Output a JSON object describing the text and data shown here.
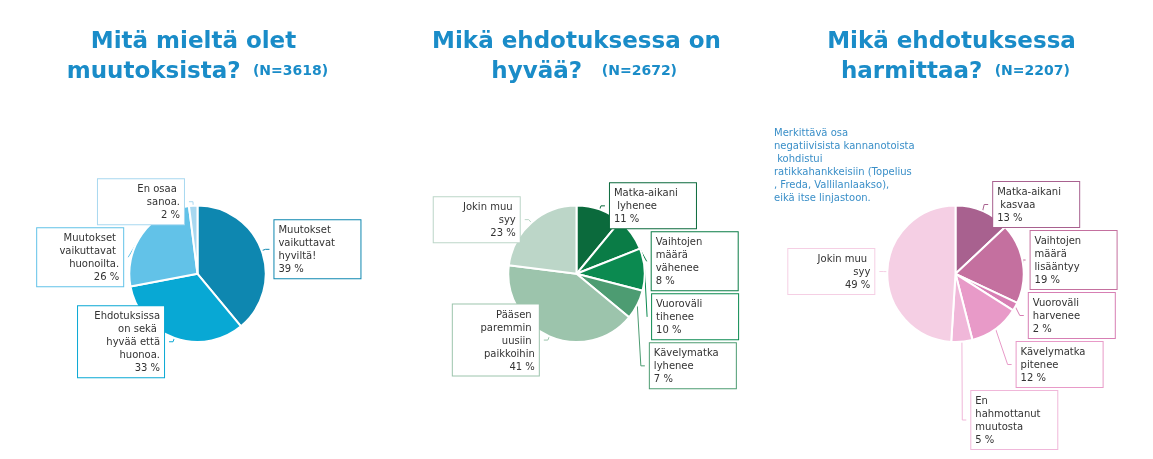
{
  "chart_data": [
    {
      "type": "pie",
      "title": "Mitä mieltä olet muutoksista?",
      "subtitle": "(N=3618)",
      "categories": [
        "Muutokset vaikuttavat hyviltä!",
        "Ehdotuksissa on sekä hyvää että huonoa.",
        "Muutokset vaikuttavat huonoilta.",
        "En osaa sanoa."
      ],
      "values": [
        39,
        33,
        26,
        2
      ],
      "value_labels": [
        "39 %",
        "33 %",
        "26 %",
        "2 %"
      ],
      "colors": [
        "#0e87b0",
        "#08a8d4",
        "#62c2e8",
        "#a8d8f0"
      ]
    },
    {
      "type": "pie",
      "title": "Mikä ehdotuksessa on hyvää?",
      "subtitle": "(N=2672)",
      "categories": [
        "Matka-aikani lyhenee",
        "Vaihtojen määrä vähenee",
        "Vuoroväli tihenee",
        "Kävelymatka lyhenee",
        "Pääsen paremmin uusiin paikkoihin",
        "Jokin muu syy"
      ],
      "values": [
        11,
        8,
        10,
        7,
        41,
        23
      ],
      "value_labels": [
        "11 %",
        "8 %",
        "10 %",
        "7 %",
        "41 %",
        "23 %"
      ],
      "colors": [
        "#0b6a3c",
        "#0a7c46",
        "#0b8a50",
        "#4d9c72",
        "#9cc4ac",
        "#bcd6c8"
      ]
    },
    {
      "type": "pie",
      "title": "Mikä ehdotuksessa harmittaa?",
      "subtitle": "(N=2207)",
      "categories": [
        "Matka-aikani kasvaa",
        "Vaihtojen määrä lisääntyy",
        "Vuoroväli harvenee",
        "Kävelymatka pitenee",
        "En hahmottanut muutosta",
        "Jokin muu syy"
      ],
      "values": [
        13,
        19,
        2,
        12,
        5,
        49
      ],
      "value_labels": [
        "13 %",
        "19 %",
        "2 %",
        "12 %",
        "5 %",
        "49 %"
      ],
      "colors": [
        "#a8618f",
        "#c4709f",
        "#d77fb4",
        "#e89ac8",
        "#f0b7d9",
        "#f5cfe4"
      ],
      "annotations": [
        "Merkittävä osa negatiivisista kannanotoista kohdistui ratikkahankkeisiin (Topelius, Freda, Vallilanlaakso), eikä itse linjastoon."
      ]
    }
  ]
}
